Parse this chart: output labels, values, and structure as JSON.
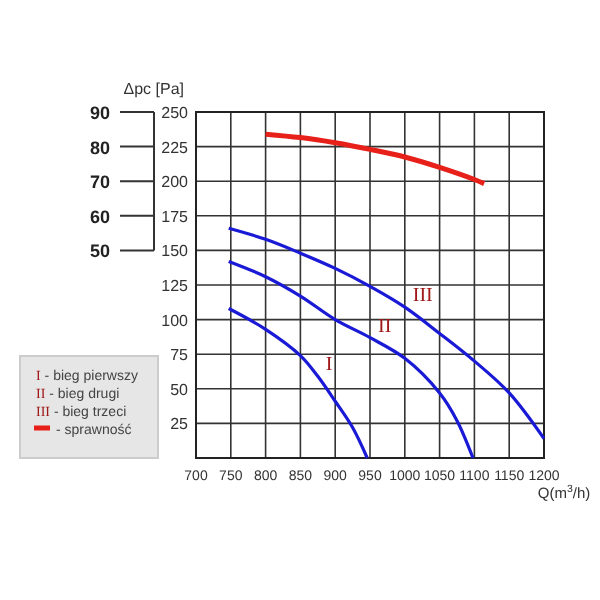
{
  "chart_data": {
    "type": "line",
    "xlabel": "Q(m$^{3}$/h)",
    "ylabel": "Δpc [Pa]",
    "xlim": [
      700,
      1200
    ],
    "xticks": [
      700,
      750,
      800,
      850,
      900,
      950,
      1000,
      1050,
      1100,
      1150,
      1200
    ],
    "ylim": [
      0,
      250
    ],
    "yticks": [
      25,
      50,
      75,
      100,
      125,
      150,
      175,
      200,
      225,
      250
    ],
    "y2lim": [
      -10,
      90
    ],
    "y2ticks": [
      50,
      60,
      70,
      80,
      90
    ],
    "grid": true,
    "legend": "left",
    "marker": "none",
    "line_style": "solid",
    "series": [
      {
        "name": "I",
        "color": "#1a1ad6",
        "x": [
          747,
          800,
          850,
          875,
          900,
          925,
          946
        ],
        "values": [
          108,
          93,
          74,
          59,
          41,
          22,
          0
        ]
      },
      {
        "name": "II",
        "color": "#1a1ad6",
        "x": [
          747,
          800,
          850,
          900,
          950,
          1000,
          1050,
          1075,
          1098
        ],
        "values": [
          142,
          131,
          117,
          100,
          87,
          72,
          47,
          27,
          0
        ]
      },
      {
        "name": "III",
        "color": "#1a1ad6",
        "x": [
          747,
          800,
          850,
          900,
          950,
          1000,
          1050,
          1100,
          1150,
          1200
        ],
        "values": [
          166,
          158,
          148,
          137,
          124,
          109,
          90,
          70,
          47,
          14
        ]
      },
      {
        "name": "- sprawność",
        "color": "#e8201a",
        "axis": "y2",
        "x": [
          800,
          850,
          900,
          950,
          1000,
          1050,
          1100,
          1114
        ],
        "values": [
          83.6,
          82.6,
          81.1,
          79.2,
          77,
          74,
          70.5,
          69.3
        ]
      }
    ],
    "annotations": [
      "I - bieg pierwszy",
      "II - bieg drugi",
      "III - bieg trzeci"
    ]
  }
}
